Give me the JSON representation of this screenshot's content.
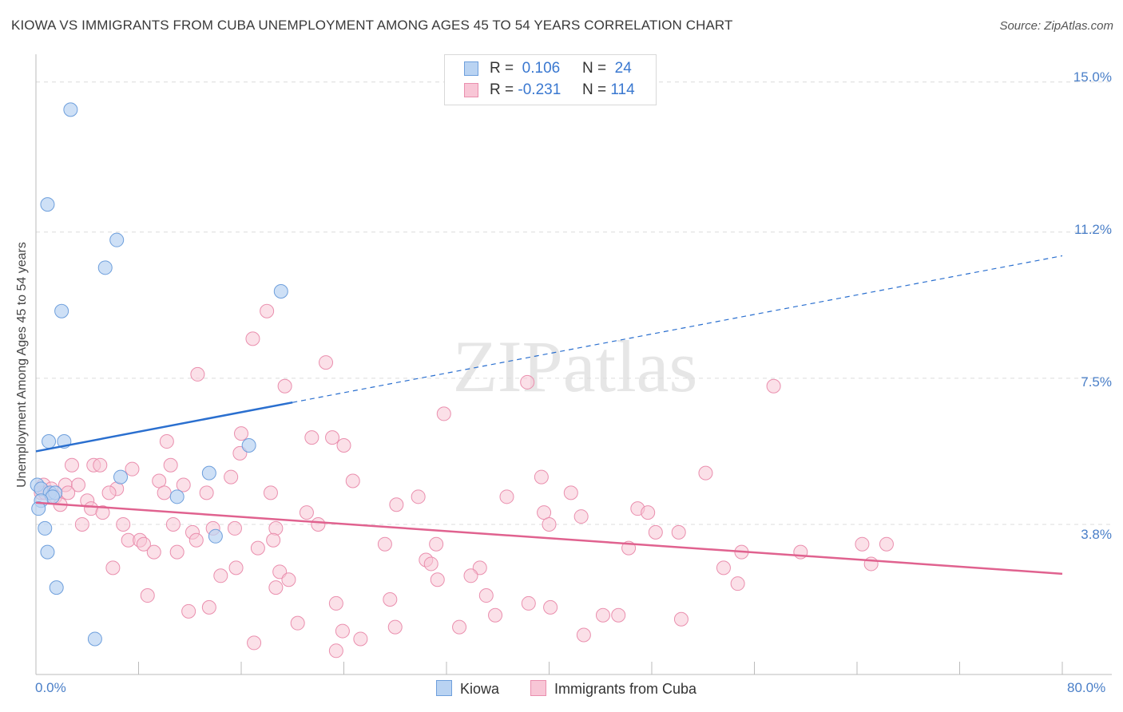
{
  "header": {
    "title": "KIOWA VS IMMIGRANTS FROM CUBA UNEMPLOYMENT AMONG AGES 45 TO 54 YEARS CORRELATION CHART",
    "source": "Source: ZipAtlas.com"
  },
  "watermark": "ZIPatlas",
  "legend": {
    "kiowa": {
      "r_label": "R =",
      "r_value": "0.106",
      "n_label": "N =",
      "n_value": "24"
    },
    "cuba": {
      "r_label": "R =",
      "r_value": "-0.231",
      "n_label": "N =",
      "n_value": "114"
    }
  },
  "bottom_legend": {
    "kiowa": "Kiowa",
    "cuba": "Immigrants from Cuba"
  },
  "colors": {
    "kiowa_fill": "#b9d3f2",
    "kiowa_stroke": "#6e9fdc",
    "kiowa_line": "#2a6fcf",
    "cuba_fill": "#f8c6d6",
    "cuba_stroke": "#ea8fae",
    "cuba_line": "#e0628f",
    "grid": "#dcdcdc",
    "axis_text": "#4a7fc8"
  },
  "chart_data": {
    "type": "scatter",
    "title": "KIOWA VS IMMIGRANTS FROM CUBA UNEMPLOYMENT AMONG AGES 45 TO 54 YEARS CORRELATION CHART",
    "xlabel": "",
    "ylabel": "Unemployment Among Ages 45 to 54 years",
    "xlim": [
      0,
      80
    ],
    "ylim": [
      0,
      15.5
    ],
    "x_tick_labels": [
      "0.0%",
      "80.0%"
    ],
    "y_ticks": [
      3.8,
      7.5,
      11.2,
      15.0
    ],
    "y_tick_labels": [
      "3.8%",
      "7.5%",
      "11.2%",
      "15.0%"
    ],
    "grid": true,
    "series": [
      {
        "name": "Kiowa",
        "trend": {
          "x0": 0,
          "y0": 5.65,
          "x_solid_end": 20,
          "x1": 80,
          "y1": 10.6
        },
        "points": [
          [
            2.7,
            14.3
          ],
          [
            0.9,
            11.9
          ],
          [
            6.3,
            11.0
          ],
          [
            5.4,
            10.3
          ],
          [
            2.0,
            9.2
          ],
          [
            19.1,
            9.7
          ],
          [
            1.0,
            5.9
          ],
          [
            2.2,
            5.9
          ],
          [
            16.6,
            5.8
          ],
          [
            13.5,
            5.1
          ],
          [
            6.6,
            5.0
          ],
          [
            0.1,
            4.8
          ],
          [
            0.4,
            4.7
          ],
          [
            1.1,
            4.6
          ],
          [
            1.5,
            4.6
          ],
          [
            1.3,
            4.5
          ],
          [
            11.0,
            4.5
          ],
          [
            0.4,
            4.4
          ],
          [
            0.2,
            4.2
          ],
          [
            0.7,
            3.7
          ],
          [
            14.0,
            3.5
          ],
          [
            0.9,
            3.1
          ],
          [
            1.6,
            2.2
          ],
          [
            4.6,
            0.9
          ]
        ]
      },
      {
        "name": "Immigrants from Cuba",
        "trend": {
          "x0": 0,
          "y0": 4.35,
          "x1": 80,
          "y1": 2.55
        },
        "points": [
          [
            18.0,
            9.2
          ],
          [
            16.9,
            8.5
          ],
          [
            22.6,
            7.9
          ],
          [
            12.6,
            7.6
          ],
          [
            19.4,
            7.3
          ],
          [
            38.3,
            7.4
          ],
          [
            57.5,
            7.3
          ],
          [
            31.8,
            6.6
          ],
          [
            16.0,
            6.1
          ],
          [
            21.5,
            6.0
          ],
          [
            23.1,
            6.0
          ],
          [
            10.2,
            5.9
          ],
          [
            24.0,
            5.8
          ],
          [
            15.9,
            5.6
          ],
          [
            2.8,
            5.3
          ],
          [
            4.5,
            5.3
          ],
          [
            5.0,
            5.3
          ],
          [
            10.5,
            5.3
          ],
          [
            7.5,
            5.2
          ],
          [
            52.2,
            5.1
          ],
          [
            15.2,
            5.0
          ],
          [
            9.6,
            4.9
          ],
          [
            24.7,
            4.9
          ],
          [
            39.4,
            5.0
          ],
          [
            0.6,
            4.8
          ],
          [
            2.3,
            4.8
          ],
          [
            3.3,
            4.8
          ],
          [
            6.3,
            4.7
          ],
          [
            11.5,
            4.8
          ],
          [
            1.2,
            4.7
          ],
          [
            0.4,
            4.6
          ],
          [
            0.7,
            4.6
          ],
          [
            2.5,
            4.6
          ],
          [
            5.7,
            4.6
          ],
          [
            10.0,
            4.6
          ],
          [
            13.3,
            4.6
          ],
          [
            18.3,
            4.6
          ],
          [
            29.8,
            4.5
          ],
          [
            36.7,
            4.5
          ],
          [
            41.7,
            4.6
          ],
          [
            1.5,
            4.5
          ],
          [
            4.0,
            4.4
          ],
          [
            1.9,
            4.3
          ],
          [
            28.1,
            4.3
          ],
          [
            46.9,
            4.2
          ],
          [
            4.3,
            4.2
          ],
          [
            5.2,
            4.1
          ],
          [
            21.1,
            4.1
          ],
          [
            39.6,
            4.1
          ],
          [
            42.5,
            4.0
          ],
          [
            47.7,
            4.1
          ],
          [
            40.0,
            3.8
          ],
          [
            3.6,
            3.8
          ],
          [
            6.8,
            3.8
          ],
          [
            10.7,
            3.8
          ],
          [
            22.0,
            3.8
          ],
          [
            13.8,
            3.7
          ],
          [
            15.5,
            3.7
          ],
          [
            18.7,
            3.7
          ],
          [
            48.3,
            3.6
          ],
          [
            12.2,
            3.6
          ],
          [
            50.1,
            3.6
          ],
          [
            12.5,
            3.4
          ],
          [
            7.2,
            3.4
          ],
          [
            8.1,
            3.4
          ],
          [
            8.4,
            3.3
          ],
          [
            18.5,
            3.4
          ],
          [
            27.2,
            3.3
          ],
          [
            31.2,
            3.3
          ],
          [
            64.4,
            3.3
          ],
          [
            66.3,
            3.3
          ],
          [
            17.3,
            3.2
          ],
          [
            46.2,
            3.2
          ],
          [
            9.2,
            3.1
          ],
          [
            11.0,
            3.1
          ],
          [
            55.0,
            3.1
          ],
          [
            59.6,
            3.1
          ],
          [
            30.4,
            2.9
          ],
          [
            30.8,
            2.8
          ],
          [
            65.1,
            2.8
          ],
          [
            6.0,
            2.7
          ],
          [
            15.6,
            2.7
          ],
          [
            19.0,
            2.6
          ],
          [
            53.6,
            2.7
          ],
          [
            34.6,
            2.7
          ],
          [
            14.4,
            2.5
          ],
          [
            33.9,
            2.5
          ],
          [
            19.7,
            2.4
          ],
          [
            31.3,
            2.4
          ],
          [
            54.7,
            2.3
          ],
          [
            18.7,
            2.2
          ],
          [
            35.1,
            2.0
          ],
          [
            8.7,
            2.0
          ],
          [
            27.6,
            1.9
          ],
          [
            23.4,
            1.8
          ],
          [
            38.4,
            1.8
          ],
          [
            13.5,
            1.7
          ],
          [
            40.1,
            1.7
          ],
          [
            11.9,
            1.6
          ],
          [
            35.8,
            1.5
          ],
          [
            44.2,
            1.5
          ],
          [
            45.4,
            1.5
          ],
          [
            50.3,
            1.4
          ],
          [
            20.4,
            1.3
          ],
          [
            28.0,
            1.2
          ],
          [
            33.0,
            1.2
          ],
          [
            23.9,
            1.1
          ],
          [
            42.7,
            1.0
          ],
          [
            25.3,
            0.9
          ],
          [
            17.0,
            0.8
          ],
          [
            23.4,
            0.6
          ]
        ]
      }
    ]
  }
}
